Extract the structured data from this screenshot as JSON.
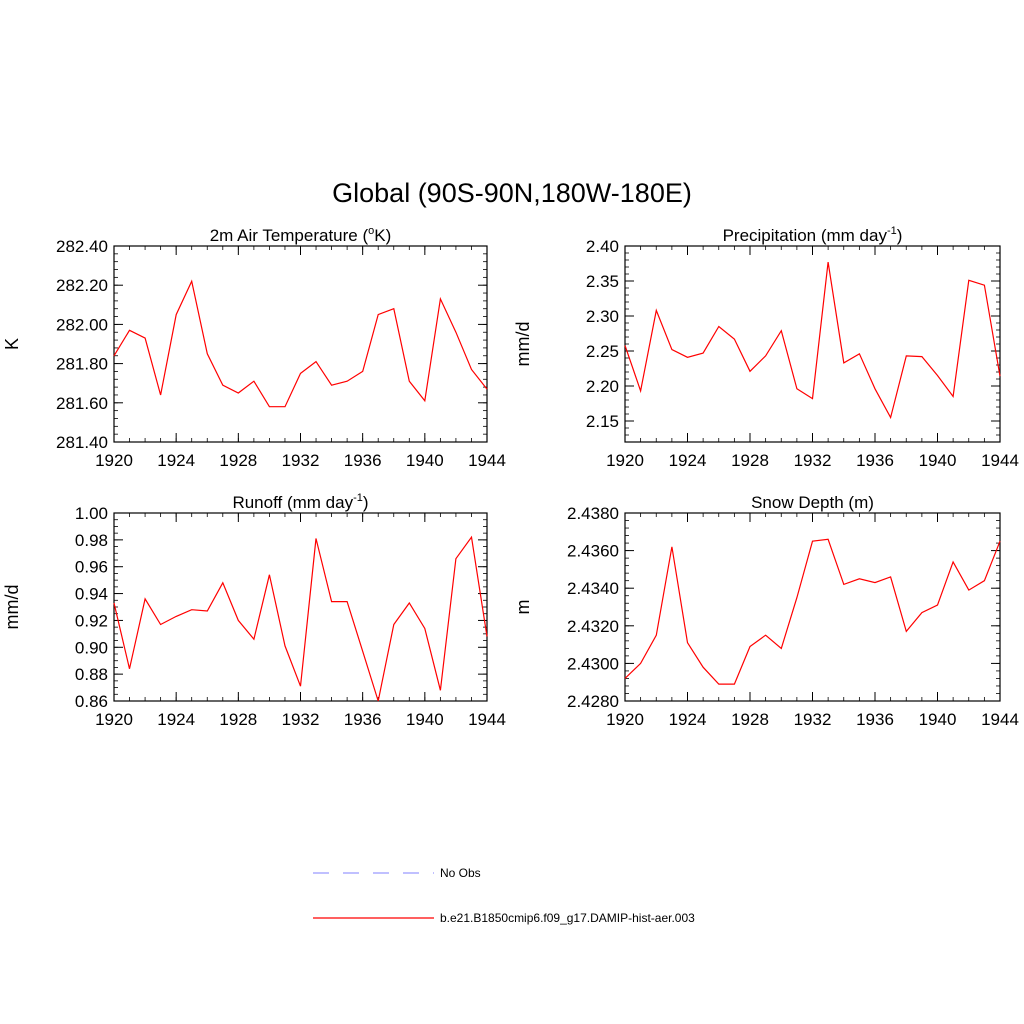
{
  "figure": {
    "title": "Global (90S-90N,180W-180E)"
  },
  "colors": {
    "series": "#ff0000",
    "obs": "#9a9aff",
    "axis": "#000000"
  },
  "legend": {
    "entries": [
      {
        "label": "No Obs",
        "style": "dashed",
        "color": "#9a9aff"
      },
      {
        "label": "b.e21.B1850cmip6.f09_g17.DAMIP-hist-aer.003",
        "style": "solid",
        "color": "#ff0000"
      }
    ]
  },
  "chart_data": [
    {
      "type": "line",
      "title": "2m Air Temperature (°K)",
      "title_parts": [
        "2m Air Temperature (",
        "o",
        "K)"
      ],
      "title_sup_index": 1,
      "ylabel": "K",
      "xlim": [
        1920,
        1944
      ],
      "ylim": [
        281.4,
        282.4
      ],
      "xticks": [
        1920,
        1924,
        1928,
        1932,
        1936,
        1940,
        1944
      ],
      "yticks": [
        "281.40",
        "281.60",
        "281.80",
        "282.00",
        "282.20",
        "282.40"
      ],
      "yminor_step": 0.04,
      "x": [
        1920,
        1921,
        1922,
        1923,
        1924,
        1925,
        1926,
        1927,
        1928,
        1929,
        1930,
        1931,
        1932,
        1933,
        1934,
        1935,
        1936,
        1937,
        1938,
        1939,
        1940,
        1941,
        1942,
        1943,
        1944
      ],
      "series": [
        {
          "name": "b.e21.B1850cmip6.f09_g17.DAMIP-hist-aer.003",
          "values": [
            281.84,
            281.97,
            281.93,
            281.64,
            282.05,
            282.22,
            281.85,
            281.69,
            281.65,
            281.71,
            281.58,
            281.58,
            281.75,
            281.81,
            281.69,
            281.71,
            281.76,
            282.05,
            282.08,
            281.71,
            281.61,
            282.13,
            281.96,
            281.77,
            281.67
          ]
        }
      ]
    },
    {
      "type": "line",
      "title": "Precipitation (mm day-1)",
      "title_parts": [
        "Precipitation (mm day",
        "-1",
        ")"
      ],
      "title_sup_index": 1,
      "ylabel": "mm/d",
      "xlim": [
        1920,
        1944
      ],
      "ylim": [
        2.12,
        2.4
      ],
      "xticks": [
        1920,
        1924,
        1928,
        1932,
        1936,
        1940,
        1944
      ],
      "yticks": [
        "2.15",
        "2.20",
        "2.25",
        "2.30",
        "2.35",
        "2.40"
      ],
      "yminor_step": 0.01,
      "x": [
        1920,
        1921,
        1922,
        1923,
        1924,
        1925,
        1926,
        1927,
        1928,
        1929,
        1930,
        1931,
        1932,
        1933,
        1934,
        1935,
        1936,
        1937,
        1938,
        1939,
        1940,
        1941,
        1942,
        1943,
        1944
      ],
      "series": [
        {
          "name": "b.e21.B1850cmip6.f09_g17.DAMIP-hist-aer.003",
          "values": [
            2.258,
            2.193,
            2.308,
            2.252,
            2.241,
            2.247,
            2.285,
            2.267,
            2.221,
            2.243,
            2.279,
            2.196,
            2.182,
            2.377,
            2.233,
            2.246,
            2.196,
            2.155,
            2.243,
            2.242,
            2.215,
            2.185,
            2.351,
            2.344,
            2.214
          ]
        }
      ]
    },
    {
      "type": "line",
      "title": "Runoff (mm day-1)",
      "title_parts": [
        "Runoff (mm day",
        "-1",
        ")"
      ],
      "title_sup_index": 1,
      "ylabel": "mm/d",
      "xlim": [
        1920,
        1944
      ],
      "ylim": [
        0.86,
        1.0
      ],
      "xticks": [
        1920,
        1924,
        1928,
        1932,
        1936,
        1940,
        1944
      ],
      "yticks": [
        "0.86",
        "0.88",
        "0.90",
        "0.92",
        "0.94",
        "0.96",
        "0.98",
        "1.00"
      ],
      "yminor_step": 0.005,
      "x": [
        1920,
        1921,
        1922,
        1923,
        1924,
        1925,
        1926,
        1927,
        1928,
        1929,
        1930,
        1931,
        1932,
        1933,
        1934,
        1935,
        1936,
        1937,
        1938,
        1939,
        1940,
        1941,
        1942,
        1943,
        1944
      ],
      "series": [
        {
          "name": "b.e21.B1850cmip6.f09_g17.DAMIP-hist-aer.003",
          "values": [
            0.933,
            0.884,
            0.936,
            0.917,
            0.923,
            0.928,
            0.927,
            0.948,
            0.92,
            0.906,
            0.954,
            0.901,
            0.871,
            0.981,
            0.934,
            0.934,
            0.897,
            0.86,
            0.917,
            0.933,
            0.914,
            0.868,
            0.966,
            0.982,
            0.908
          ]
        }
      ]
    },
    {
      "type": "line",
      "title": "Snow Depth (m)",
      "title_parts": [
        "Snow Depth (m)"
      ],
      "title_sup_index": -1,
      "ylabel": "m",
      "xlim": [
        1920,
        1944
      ],
      "ylim": [
        2.428,
        2.438
      ],
      "xticks": [
        1920,
        1924,
        1928,
        1932,
        1936,
        1940,
        1944
      ],
      "yticks": [
        "2.4280",
        "2.4300",
        "2.4320",
        "2.4340",
        "2.4360",
        "2.4380"
      ],
      "yminor_step": 0.0004,
      "x": [
        1920,
        1921,
        1922,
        1923,
        1924,
        1925,
        1926,
        1927,
        1928,
        1929,
        1930,
        1931,
        1932,
        1933,
        1934,
        1935,
        1936,
        1937,
        1938,
        1939,
        1940,
        1941,
        1942,
        1943,
        1944
      ],
      "series": [
        {
          "name": "b.e21.B1850cmip6.f09_g17.DAMIP-hist-aer.003",
          "values": [
            2.4292,
            2.43,
            2.4315,
            2.4362,
            2.4311,
            2.4298,
            2.4289,
            2.4289,
            2.4309,
            2.4315,
            2.4308,
            2.4335,
            2.4365,
            2.4366,
            2.4342,
            2.4345,
            2.4343,
            2.4346,
            2.4317,
            2.4327,
            2.4331,
            2.4354,
            2.4339,
            2.4344,
            2.4365
          ]
        }
      ]
    }
  ]
}
